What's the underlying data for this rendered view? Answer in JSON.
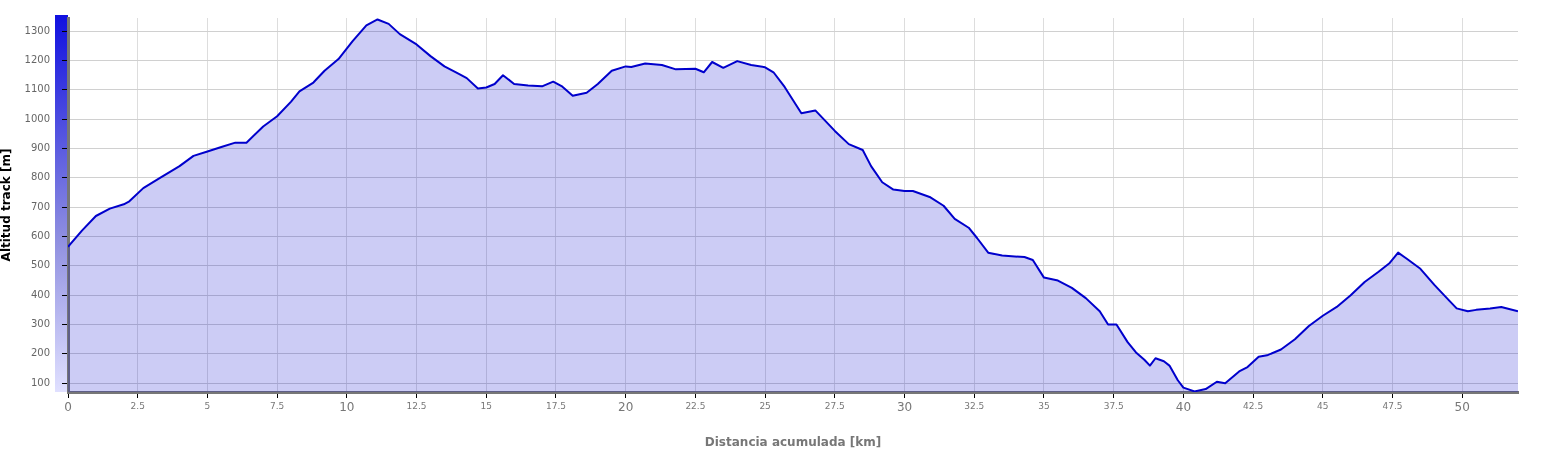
{
  "chart_data": {
    "type": "area",
    "xlabel": "Distancia acumulada [km]",
    "ylabel": "Altitud track [m]",
    "x": [
      0,
      0.5,
      1,
      1.5,
      2,
      2.2,
      2.7,
      3.3,
      4,
      4.5,
      5,
      5.5,
      6,
      6.4,
      7,
      7.5,
      8,
      8.3,
      8.8,
      9.2,
      9.7,
      10.2,
      10.7,
      11.1,
      11.5,
      11.9,
      12.5,
      13,
      13.5,
      14,
      14.3,
      14.7,
      15,
      15.3,
      15.6,
      16,
      16.5,
      17,
      17.4,
      17.7,
      18.1,
      18.6,
      19,
      19.5,
      20,
      20.2,
      20.7,
      21.3,
      21.8,
      22.5,
      22.8,
      23.1,
      23.5,
      24,
      24.5,
      25,
      25.3,
      25.7,
      26.1,
      26.3,
      26.8,
      27.5,
      28,
      28.5,
      28.8,
      29.2,
      29.6,
      30,
      30.3,
      30.9,
      31.4,
      31.8,
      32.3,
      32.6,
      33,
      33.5,
      34.3,
      34.6,
      35,
      35.5,
      36,
      36.5,
      37,
      37.3,
      37.6,
      38,
      38.3,
      38.6,
      38.8,
      39,
      39.3,
      39.5,
      39.8,
      40,
      40.4,
      40.8,
      41.2,
      41.5,
      42,
      42.3,
      42.7,
      43,
      43.5,
      44,
      44.5,
      45,
      45.5,
      46,
      46.5,
      47,
      47.4,
      47.7,
      48,
      48.5,
      49,
      49.5,
      49.8,
      50.2,
      50.5,
      51,
      51.4,
      52
    ],
    "series": [
      {
        "color": "#0000cc",
        "values": [
          565,
          620,
          670,
          695,
          710,
          720,
          765,
          800,
          840,
          875,
          890,
          905,
          920,
          920,
          975,
          1010,
          1060,
          1095,
          1125,
          1165,
          1205,
          1265,
          1320,
          1340,
          1325,
          1290,
          1255,
          1215,
          1180,
          1155,
          1140,
          1105,
          1108,
          1120,
          1150,
          1120,
          1115,
          1112,
          1128,
          1113,
          1080,
          1090,
          1120,
          1165,
          1180,
          1178,
          1190,
          1185,
          1170,
          1172,
          1160,
          1195,
          1175,
          1198,
          1185,
          1177,
          1160,
          1110,
          1050,
          1020,
          1030,
          960,
          915,
          895,
          840,
          785,
          760,
          755,
          755,
          735,
          705,
          660,
          630,
          595,
          545,
          535,
          530,
          520,
          460,
          450,
          425,
          390,
          345,
          300,
          300,
          240,
          205,
          180,
          160,
          185,
          175,
          160,
          110,
          85,
          72,
          80,
          105,
          100,
          140,
          155,
          190,
          195,
          215,
          250,
          295,
          330,
          360,
          400,
          445,
          480,
          510,
          545,
          525,
          490,
          435,
          385,
          355,
          345,
          350,
          355,
          360,
          345
        ]
      }
    ],
    "xlim": [
      0,
      52
    ],
    "xticks": [
      0,
      2.5,
      5,
      7.5,
      10,
      12.5,
      15,
      17.5,
      20,
      22.5,
      25,
      27.5,
      30,
      32.5,
      35,
      37.5,
      40,
      42.5,
      45,
      47.5,
      50
    ],
    "ylim": [
      70,
      1345
    ],
    "yticks": [
      100,
      200,
      300,
      400,
      500,
      600,
      700,
      800,
      900,
      1000,
      1100,
      1200,
      1300
    ],
    "grid": true,
    "legend": false,
    "marker": "none",
    "line_style": "solid"
  }
}
